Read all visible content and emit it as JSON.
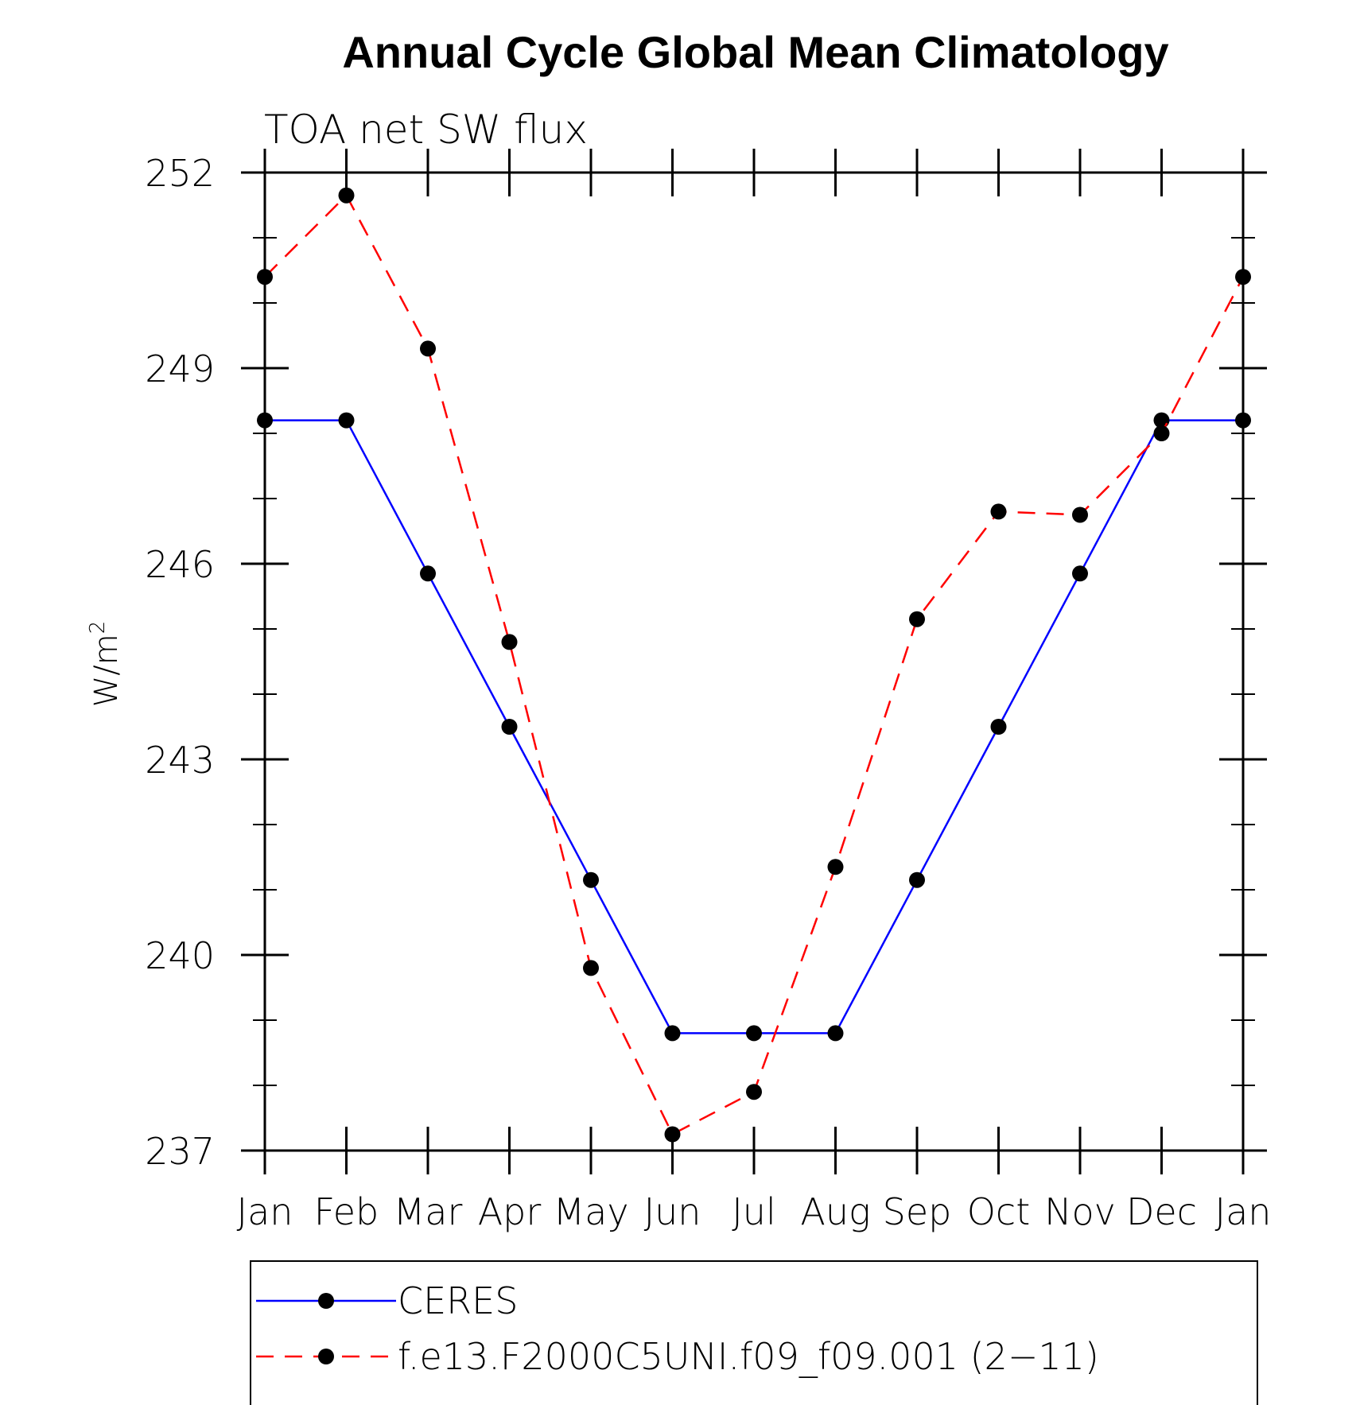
{
  "chart_data": {
    "type": "line",
    "title": "Annual Cycle Global Mean Climatology",
    "subtitle": "TOA net SW flux",
    "ylabel": "W/m",
    "ylabel_superscript": "2",
    "ylim": [
      237,
      252
    ],
    "yticks": [
      "252",
      "249",
      "246",
      "243",
      "240",
      "237"
    ],
    "ytick_values": [
      252,
      249,
      246,
      243,
      240,
      237
    ],
    "categories": [
      "Jan",
      "Feb",
      "Mar",
      "Apr",
      "May",
      "Jun",
      "Jul",
      "Aug",
      "Sep",
      "Oct",
      "Nov",
      "Dec",
      "Jan"
    ],
    "series": [
      {
        "name": "CERES",
        "color": "#0000ff",
        "dash": "solid",
        "values": [
          248.2,
          248.2,
          245.85,
          243.5,
          241.15,
          238.8,
          238.8,
          238.8,
          241.15,
          243.5,
          245.85,
          248.2,
          248.2
        ]
      },
      {
        "name": "f.e13.F2000C5UNI.f09_f09.001 (2−11)",
        "color": "#ff0000",
        "dash": "dashed",
        "values": [
          250.4,
          251.65,
          249.3,
          244.8,
          239.8,
          237.25,
          237.9,
          241.35,
          245.15,
          246.8,
          246.75,
          248.0,
          250.4
        ]
      }
    ],
    "grid": false,
    "legend_position": "bottom"
  }
}
